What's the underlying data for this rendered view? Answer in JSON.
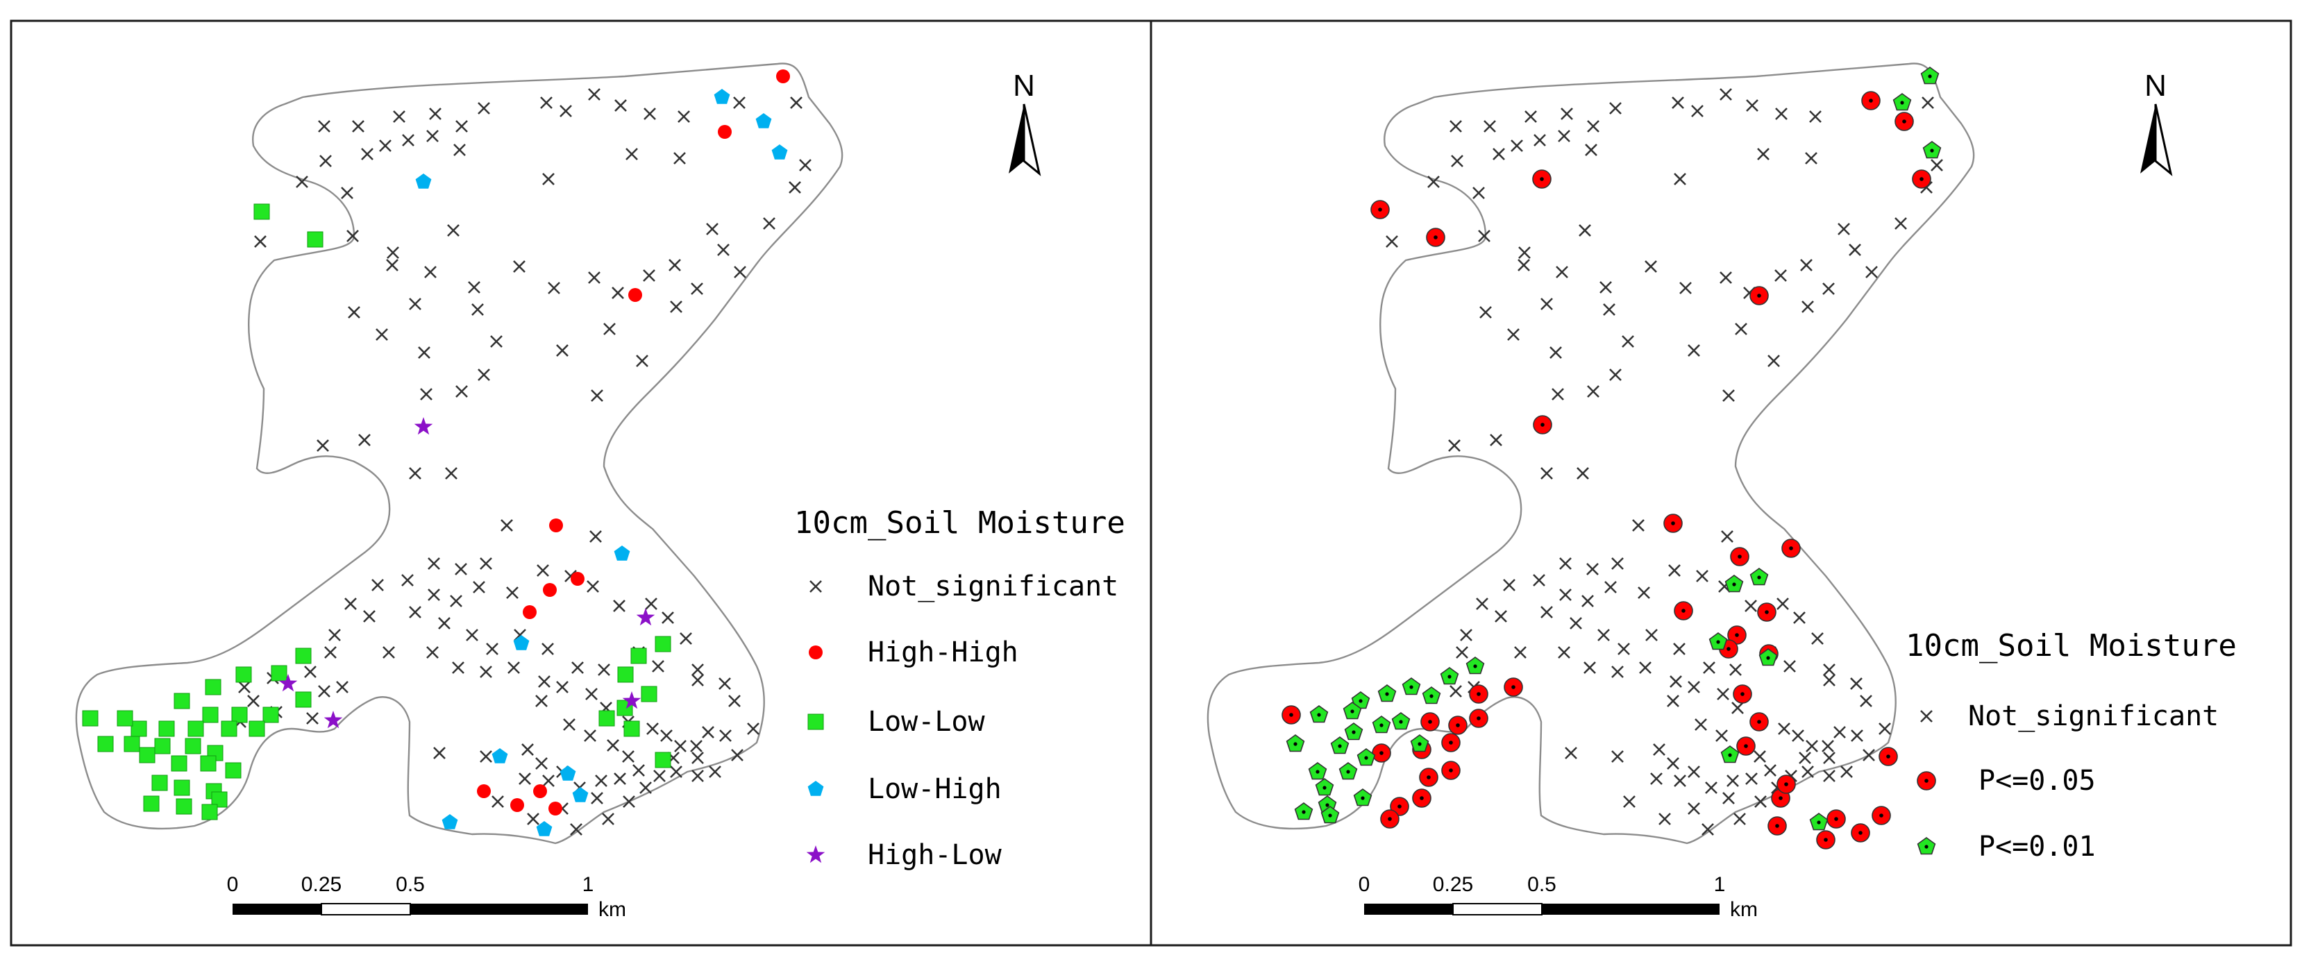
{
  "colors": {
    "frame": "#1a1a1a",
    "outline": "#8c8c8c",
    "cross": "#333333",
    "high_high": "#ff0000",
    "low_low": "#22e622",
    "low_high": "#00b0f0",
    "high_low": "#8b10c8",
    "p05": "#ff0000",
    "p01": "#22e622"
  },
  "maps": [
    {
      "legend": {
        "title": "10cm_Soil Moisture",
        "items": [
          {
            "label": "Not_significant",
            "symbol": "cross-icon"
          },
          {
            "label": "High-High",
            "symbol": "red-circle-icon"
          },
          {
            "label": "Low-Low",
            "symbol": "green-square-icon"
          },
          {
            "label": "Low-High",
            "symbol": "blue-pentagon-icon"
          },
          {
            "label": "High-Low",
            "symbol": "purple-star-icon"
          }
        ]
      },
      "scale_bar": {
        "ticks": [
          "0",
          "0.25",
          "0.5",
          "1"
        ],
        "unit": "km"
      },
      "north_label": "N"
    },
    {
      "legend": {
        "title": "10cm_Soil Moisture",
        "items": [
          {
            "label": "Not_significant",
            "symbol": "cross-icon"
          },
          {
            "label": "P<=0.05",
            "symbol": "red-dot-circle-icon"
          },
          {
            "label": "P<=0.01",
            "symbol": "green-dot-pentagon-icon"
          }
        ]
      },
      "scale_bar": {
        "ticks": [
          "0",
          "0.25",
          "0.5",
          "1"
        ],
        "unit": "km"
      },
      "north_label": "N"
    }
  ]
}
